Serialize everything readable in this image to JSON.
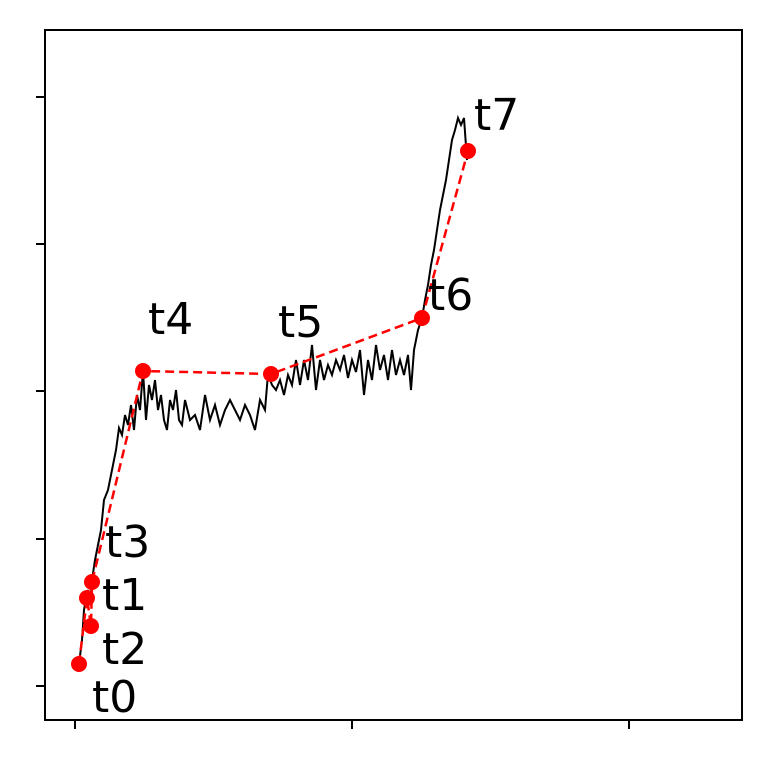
{
  "chart_data": {
    "type": "line",
    "xlim": [
      -30,
      667
    ],
    "ylim": [
      -34,
      656
    ],
    "xticks": [
      0,
      277,
      554
    ],
    "yticks": [
      0,
      147,
      295,
      442,
      589
    ],
    "series": [
      {
        "color": "#000000",
        "linestyle": "solid",
        "markers": false,
        "x": [
          4,
          7,
          9,
          11,
          13,
          15,
          17,
          20,
          23,
          26,
          29,
          33,
          37,
          41,
          44,
          47,
          50,
          53,
          56,
          59,
          62,
          65,
          68,
          71,
          74,
          77,
          80,
          83,
          86,
          89,
          92,
          95,
          98,
          101,
          104,
          107,
          110,
          115,
          120,
          125,
          130,
          135,
          140,
          145,
          150,
          155,
          160,
          165,
          170,
          175,
          180,
          185,
          190,
          193,
          197,
          201,
          205,
          209,
          213,
          217,
          221,
          225,
          229,
          233,
          237,
          241,
          245,
          249,
          253,
          257,
          261,
          265,
          269,
          273,
          277,
          281,
          285,
          289,
          293,
          297,
          301,
          305,
          309,
          313,
          317,
          321,
          325,
          329,
          333,
          336,
          339,
          343,
          347,
          350,
          353,
          356,
          359,
          362,
          365,
          368,
          371,
          374,
          377,
          380,
          383,
          386,
          389,
          392
        ],
        "values": [
          22,
          46,
          76,
          88,
          96,
          81,
          106,
          126,
          141,
          156,
          186,
          196,
          216,
          236,
          258,
          251,
          271,
          261,
          281,
          256,
          291,
          276,
          315,
          266,
          301,
          286,
          306,
          276,
          291,
          266,
          256,
          286,
          276,
          296,
          266,
          261,
          286,
          266,
          271,
          256,
          291,
          266,
          281,
          261,
          276,
          286,
          276,
          266,
          281,
          271,
          256,
          286,
          276,
          312,
          301,
          296,
          306,
          291,
          311,
          301,
          326,
          301,
          326,
          306,
          341,
          296,
          326,
          306,
          321,
          311,
          326,
          316,
          331,
          308,
          326,
          314,
          336,
          291,
          326,
          306,
          341,
          316,
          331,
          306,
          336,
          311,
          326,
          311,
          331,
          296,
          336,
          356,
          368,
          386,
          401,
          421,
          436,
          456,
          476,
          491,
          506,
          526,
          546,
          556,
          568,
          561,
          568,
          526
        ]
      },
      {
        "color": "#ff0000",
        "linestyle": "dashed",
        "markers": true,
        "x": [
          4,
          12,
          16,
          17,
          68,
          196,
          347,
          393
        ],
        "values": [
          22,
          88,
          60,
          104,
          315,
          312,
          368,
          535
        ],
        "labels": [
          "t0",
          "t1",
          "t2",
          "t3",
          "t4",
          "t5",
          "t6",
          "t7"
        ]
      }
    ]
  }
}
